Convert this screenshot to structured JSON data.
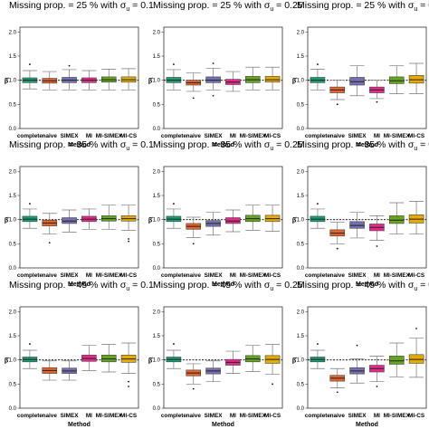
{
  "chart_data": {
    "type": "boxplot",
    "categories": [
      "complete",
      "naive",
      "SIMEX",
      "MI",
      "MI-SIMEX",
      "MI-CS"
    ],
    "xlabel": "Method",
    "ylabel": "β̂",
    "ylim": [
      0,
      2.1
    ],
    "yticks": [
      "0.0",
      "0.5",
      "1.0",
      "1.5",
      "2.0"
    ],
    "reference_line": 1.0,
    "colors": [
      "#1a9e77",
      "#e6632a",
      "#7570b3",
      "#e7298a",
      "#66a61e",
      "#e6ab02"
    ],
    "panels": [
      {
        "title_prefix": "Missing prop. = 25 % with σ",
        "title_sub": "u",
        "title_suffix": " = 0.1",
        "boxes": [
          {
            "q1": 0.95,
            "med": 1.0,
            "q3": 1.05,
            "lo": 0.82,
            "hi": 1.2,
            "out": [
              1.33
            ]
          },
          {
            "q1": 0.94,
            "med": 0.99,
            "q3": 1.04,
            "lo": 0.8,
            "hi": 1.18,
            "out": []
          },
          {
            "q1": 0.95,
            "med": 1.0,
            "q3": 1.06,
            "lo": 0.8,
            "hi": 1.22,
            "out": [
              1.3
            ]
          },
          {
            "q1": 0.95,
            "med": 1.0,
            "q3": 1.05,
            "lo": 0.8,
            "hi": 1.2,
            "out": []
          },
          {
            "q1": 0.96,
            "med": 1.01,
            "q3": 1.07,
            "lo": 0.8,
            "hi": 1.23,
            "out": []
          },
          {
            "q1": 0.96,
            "med": 1.01,
            "q3": 1.07,
            "lo": 0.8,
            "hi": 1.24,
            "out": []
          }
        ]
      },
      {
        "title_prefix": "Missing prop. = 25 % with σ",
        "title_sub": "u",
        "title_suffix": " = 0.25",
        "boxes": [
          {
            "q1": 0.95,
            "med": 1.0,
            "q3": 1.06,
            "lo": 0.8,
            "hi": 1.22,
            "out": [
              1.33
            ]
          },
          {
            "q1": 0.9,
            "med": 0.95,
            "q3": 1.0,
            "lo": 0.77,
            "hi": 1.15,
            "out": [
              0.63
            ]
          },
          {
            "q1": 0.95,
            "med": 1.0,
            "q3": 1.07,
            "lo": 0.8,
            "hi": 1.25,
            "out": [
              1.35,
              0.68
            ]
          },
          {
            "q1": 0.91,
            "med": 0.96,
            "q3": 1.02,
            "lo": 0.77,
            "hi": 1.18,
            "out": []
          },
          {
            "q1": 0.95,
            "med": 1.01,
            "q3": 1.08,
            "lo": 0.8,
            "hi": 1.27,
            "out": []
          },
          {
            "q1": 0.96,
            "med": 1.01,
            "q3": 1.08,
            "lo": 0.8,
            "hi": 1.27,
            "out": []
          }
        ]
      },
      {
        "title_prefix": "Missing prop. = 25 % with σ",
        "title_sub": "u",
        "title_suffix": " = 0.5",
        "boxes": [
          {
            "q1": 0.95,
            "med": 1.0,
            "q3": 1.06,
            "lo": 0.8,
            "hi": 1.23,
            "out": [
              1.33
            ]
          },
          {
            "q1": 0.74,
            "med": 0.8,
            "q3": 0.86,
            "lo": 0.6,
            "hi": 1.0,
            "out": [
              0.5
            ]
          },
          {
            "q1": 0.9,
            "med": 0.97,
            "q3": 1.06,
            "lo": 0.68,
            "hi": 1.3,
            "out": []
          },
          {
            "q1": 0.74,
            "med": 0.8,
            "q3": 0.86,
            "lo": 0.62,
            "hi": 1.0,
            "out": [
              0.55
            ]
          },
          {
            "q1": 0.93,
            "med": 0.99,
            "q3": 1.07,
            "lo": 0.72,
            "hi": 1.3,
            "out": []
          },
          {
            "q1": 0.94,
            "med": 1.01,
            "q3": 1.1,
            "lo": 0.72,
            "hi": 1.35,
            "out": []
          }
        ]
      },
      {
        "title_prefix": "Missing prop. = 35 % with σ",
        "title_sub": "u",
        "title_suffix": " = 0.1",
        "boxes": [
          {
            "q1": 0.96,
            "med": 1.01,
            "q3": 1.07,
            "lo": 0.82,
            "hi": 1.22,
            "out": [
              1.33
            ]
          },
          {
            "q1": 0.87,
            "med": 0.93,
            "q3": 0.99,
            "lo": 0.7,
            "hi": 1.13,
            "out": [
              0.52
            ]
          },
          {
            "q1": 0.92,
            "med": 0.97,
            "q3": 1.04,
            "lo": 0.74,
            "hi": 1.2,
            "out": []
          },
          {
            "q1": 0.96,
            "med": 1.01,
            "q3": 1.07,
            "lo": 0.8,
            "hi": 1.22,
            "out": []
          },
          {
            "q1": 0.97,
            "med": 1.02,
            "q3": 1.08,
            "lo": 0.8,
            "hi": 1.3,
            "out": []
          },
          {
            "q1": 0.97,
            "med": 1.02,
            "q3": 1.08,
            "lo": 0.78,
            "hi": 1.3,
            "out": [
              0.6,
              0.55
            ]
          }
        ]
      },
      {
        "title_prefix": "Missing prop. = 35 % with σ",
        "title_sub": "u",
        "title_suffix": " = 0.25",
        "boxes": [
          {
            "q1": 0.96,
            "med": 1.01,
            "q3": 1.07,
            "lo": 0.82,
            "hi": 1.22,
            "out": [
              1.33
            ]
          },
          {
            "q1": 0.8,
            "med": 0.86,
            "q3": 0.92,
            "lo": 0.63,
            "hi": 1.05,
            "out": [
              0.5
            ]
          },
          {
            "q1": 0.86,
            "med": 0.92,
            "q3": 0.98,
            "lo": 0.68,
            "hi": 1.15,
            "out": []
          },
          {
            "q1": 0.92,
            "med": 0.97,
            "q3": 1.04,
            "lo": 0.75,
            "hi": 1.2,
            "out": []
          },
          {
            "q1": 0.96,
            "med": 1.02,
            "q3": 1.09,
            "lo": 0.78,
            "hi": 1.3,
            "out": []
          },
          {
            "q1": 0.96,
            "med": 1.02,
            "q3": 1.09,
            "lo": 0.76,
            "hi": 1.3,
            "out": []
          }
        ]
      },
      {
        "title_prefix": "Missing prop. = 35 % with σ",
        "title_sub": "u",
        "title_suffix": " = 0.5",
        "boxes": [
          {
            "q1": 0.96,
            "med": 1.01,
            "q3": 1.07,
            "lo": 0.82,
            "hi": 1.22,
            "out": [
              1.33
            ]
          },
          {
            "q1": 0.66,
            "med": 0.72,
            "q3": 0.79,
            "lo": 0.5,
            "hi": 0.95,
            "out": [
              0.4
            ]
          },
          {
            "q1": 0.82,
            "med": 0.88,
            "q3": 0.96,
            "lo": 0.62,
            "hi": 1.15,
            "out": []
          },
          {
            "q1": 0.77,
            "med": 0.84,
            "q3": 0.91,
            "lo": 0.57,
            "hi": 1.08,
            "out": [
              0.45
            ]
          },
          {
            "q1": 0.92,
            "med": 0.99,
            "q3": 1.08,
            "lo": 0.7,
            "hi": 1.35,
            "out": []
          },
          {
            "q1": 0.93,
            "med": 1.01,
            "q3": 1.1,
            "lo": 0.7,
            "hi": 1.38,
            "out": []
          }
        ]
      },
      {
        "title_prefix": "Missing prop. = 45 % with σ",
        "title_sub": "u",
        "title_suffix": " = 0.1",
        "boxes": [
          {
            "q1": 0.96,
            "med": 1.01,
            "q3": 1.06,
            "lo": 0.82,
            "hi": 1.2,
            "out": [
              1.33
            ]
          },
          {
            "q1": 0.72,
            "med": 0.78,
            "q3": 0.84,
            "lo": 0.58,
            "hi": 0.98,
            "out": []
          },
          {
            "q1": 0.72,
            "med": 0.77,
            "q3": 0.83,
            "lo": 0.58,
            "hi": 0.98,
            "out": []
          },
          {
            "q1": 0.97,
            "med": 1.03,
            "q3": 1.1,
            "lo": 0.78,
            "hi": 1.3,
            "out": []
          },
          {
            "q1": 0.96,
            "med": 1.02,
            "q3": 1.1,
            "lo": 0.75,
            "hi": 1.32,
            "out": []
          },
          {
            "q1": 0.95,
            "med": 1.02,
            "q3": 1.1,
            "lo": 0.72,
            "hi": 1.35,
            "out": [
              0.55,
              0.45
            ]
          }
        ]
      },
      {
        "title_prefix": "Missing prop. = 45 % with σ",
        "title_sub": "u",
        "title_suffix": " = 0.25",
        "boxes": [
          {
            "q1": 0.96,
            "med": 1.01,
            "q3": 1.06,
            "lo": 0.82,
            "hi": 1.2,
            "out": [
              1.33
            ]
          },
          {
            "q1": 0.67,
            "med": 0.73,
            "q3": 0.79,
            "lo": 0.5,
            "hi": 0.92,
            "out": [
              0.4
            ]
          },
          {
            "q1": 0.71,
            "med": 0.77,
            "q3": 0.83,
            "lo": 0.55,
            "hi": 0.98,
            "out": []
          },
          {
            "q1": 0.89,
            "med": 0.95,
            "q3": 1.01,
            "lo": 0.72,
            "hi": 1.18,
            "out": []
          },
          {
            "q1": 0.96,
            "med": 1.02,
            "q3": 1.09,
            "lo": 0.76,
            "hi": 1.3,
            "out": []
          },
          {
            "q1": 0.93,
            "med": 1.01,
            "q3": 1.09,
            "lo": 0.7,
            "hi": 1.32,
            "out": [
              0.5
            ]
          }
        ]
      },
      {
        "title_prefix": "Missing prop. = 45 % with σ",
        "title_sub": "u",
        "title_suffix": " = 0.5",
        "boxes": [
          {
            "q1": 0.96,
            "med": 1.01,
            "q3": 1.06,
            "lo": 0.82,
            "hi": 1.2,
            "out": [
              1.33
            ]
          },
          {
            "q1": 0.56,
            "med": 0.62,
            "q3": 0.68,
            "lo": 0.42,
            "hi": 0.82,
            "out": [
              0.33
            ]
          },
          {
            "q1": 0.71,
            "med": 0.77,
            "q3": 0.84,
            "lo": 0.52,
            "hi": 1.02,
            "out": [
              1.3
            ]
          },
          {
            "q1": 0.75,
            "med": 0.82,
            "q3": 0.89,
            "lo": 0.55,
            "hi": 1.08,
            "out": [
              0.45
            ]
          },
          {
            "q1": 0.91,
            "med": 0.98,
            "q3": 1.08,
            "lo": 0.65,
            "hi": 1.35,
            "out": []
          },
          {
            "q1": 0.93,
            "med": 1.01,
            "q3": 1.11,
            "lo": 0.64,
            "hi": 1.45,
            "out": [
              1.65
            ]
          }
        ]
      }
    ]
  }
}
